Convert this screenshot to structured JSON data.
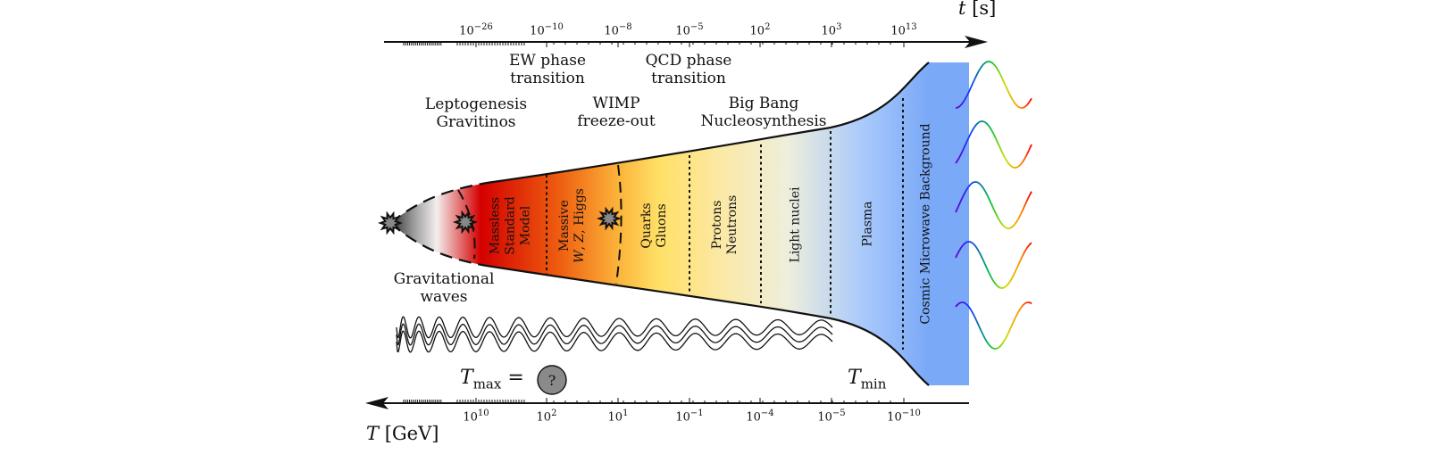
{
  "time_axis": {
    "variable": "t",
    "unit": "[s]",
    "ticks": [
      {
        "base": "10",
        "exp": "−26"
      },
      {
        "base": "10",
        "exp": "−10"
      },
      {
        "base": "10",
        "exp": "−8"
      },
      {
        "base": "10",
        "exp": "−5"
      },
      {
        "base": "10",
        "exp": "2"
      },
      {
        "base": "10",
        "exp": "3"
      },
      {
        "base": "10",
        "exp": "13"
      }
    ]
  },
  "temperature_axis": {
    "variable": "T",
    "unit": "[GeV]",
    "ticks": [
      {
        "base": "10",
        "exp": "10"
      },
      {
        "base": "10",
        "exp": "2"
      },
      {
        "base": "10",
        "exp": "1"
      },
      {
        "base": "10",
        "exp": "−1"
      },
      {
        "base": "10",
        "exp": "−4"
      },
      {
        "base": "10",
        "exp": "−5"
      },
      {
        "base": "10",
        "exp": "−10"
      }
    ]
  },
  "events": {
    "leptogenesis": [
      "Leptogenesis",
      "Gravitinos"
    ],
    "ew_phase": [
      "EW phase",
      "transition"
    ],
    "wimp": [
      "WIMP",
      "freeze-out"
    ],
    "qcd_phase": [
      "QCD phase",
      "transition"
    ],
    "bbn": [
      "Big Bang",
      "Nucleosynthesis"
    ],
    "gw": [
      "Gravitational",
      "waves"
    ]
  },
  "epochs": {
    "massless": [
      "Massless",
      "Standard",
      "Model"
    ],
    "massive_line1": "Massive",
    "massive_w": "W",
    "massive_sep1": ", ",
    "massive_z": "Z",
    "massive_rest": ", Higgs",
    "quarks": [
      "Quarks",
      "Gluons"
    ],
    "protons": [
      "Protons",
      "Neutrons"
    ],
    "light_nuclei": "Light nuclei",
    "plasma": "Plasma",
    "cmb": "Cosmic Microwave Background"
  },
  "tmax": {
    "symbol": "T",
    "sub": "max",
    "eq": " =",
    "unknown": "?"
  },
  "tmin": {
    "symbol": "T",
    "sub": "min"
  },
  "colors": {
    "axis": "#000000",
    "red": "#d40000",
    "orange": "#f07a1a",
    "yellow": "#ffe066",
    "pale": "#f3efe0",
    "blue": "#7aa9f7",
    "cmb_band": "#7aa9f7"
  }
}
